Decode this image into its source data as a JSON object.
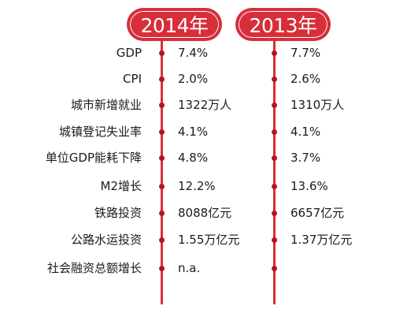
{
  "columns": [
    {
      "year": "2014年",
      "color": "#d72f3a"
    },
    {
      "year": "2013年",
      "color": "#d72f3a"
    }
  ],
  "rows": [
    {
      "label": "GDP",
      "v2014": "7.4%",
      "v2013": "7.7%"
    },
    {
      "label": "CPI",
      "v2014": "2.0%",
      "v2013": "2.6%"
    },
    {
      "label": "城市新增就业",
      "v2014": "1322万人",
      "v2013": "1310万人"
    },
    {
      "label": "城镇登记失业率",
      "v2014": "4.1%",
      "v2013": "4.1%"
    },
    {
      "label": "单位GDP能耗下降",
      "v2014": "4.8%",
      "v2013": "3.7%"
    },
    {
      "label": "M2增长",
      "v2014": "12.2%",
      "v2013": "13.6%"
    },
    {
      "label": "铁路投资",
      "v2014": "8088亿元",
      "v2013": "6657亿元"
    },
    {
      "label": "公路水运投资",
      "v2014": "1.55万亿元",
      "v2013": "1.37万亿元"
    },
    {
      "label": "社会融资总额增长",
      "v2014": "n.a.",
      "v2013": ""
    }
  ]
}
